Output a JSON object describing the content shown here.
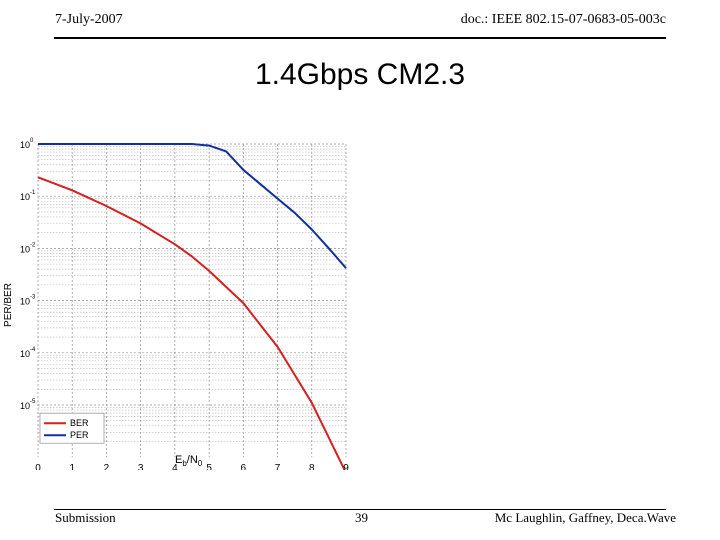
{
  "header": {
    "date": "7-July-2007",
    "doc": "doc.: IEEE 802.15-07-0683-05-003c"
  },
  "slide": {
    "title": "1.4Gbps CM2.3"
  },
  "footer": {
    "left": "Submission",
    "page": "39",
    "right": "Mc Laughlin, Gaffney,  Deca.Wave"
  },
  "chart_data": {
    "type": "line",
    "title": "",
    "xlabel": "Eb/N0",
    "ylabel": "PER/BER",
    "xlim": [
      0,
      9
    ],
    "ylim": [
      1e-06,
      1
    ],
    "yscale": "log",
    "grid": true,
    "legend_position": "bottom-left",
    "x_ticks": [
      "0",
      "1",
      "2",
      "3",
      "4",
      "5",
      "6",
      "7",
      "8",
      "9"
    ],
    "y_ticks": [
      {
        "base": "10",
        "exp": "0"
      },
      {
        "base": "10",
        "exp": "-1"
      },
      {
        "base": "10",
        "exp": "-2"
      },
      {
        "base": "10",
        "exp": "-3"
      },
      {
        "base": "10",
        "exp": "-4"
      },
      {
        "base": "10",
        "exp": "-5"
      }
    ],
    "series": [
      {
        "name": "BER",
        "color": "#d42020",
        "points": [
          [
            0,
            0.23
          ],
          [
            1,
            0.13
          ],
          [
            2,
            0.065
          ],
          [
            3,
            0.03
          ],
          [
            4,
            0.012
          ],
          [
            4.5,
            0.007
          ],
          [
            5,
            0.0037
          ],
          [
            6,
            0.0009
          ],
          [
            7,
            0.00013
          ],
          [
            8,
            1.1e-05
          ],
          [
            9,
            5e-07
          ]
        ]
      },
      {
        "name": "PER",
        "color": "#1030a0",
        "points": [
          [
            0,
            1
          ],
          [
            1,
            1
          ],
          [
            2,
            1
          ],
          [
            3,
            1
          ],
          [
            4,
            1
          ],
          [
            4.5,
            1
          ],
          [
            5,
            0.93
          ],
          [
            5.5,
            0.72
          ],
          [
            6,
            0.32
          ],
          [
            6.5,
            0.17
          ],
          [
            7,
            0.09
          ],
          [
            7.5,
            0.048
          ],
          [
            8,
            0.023
          ],
          [
            8.5,
            0.01
          ],
          [
            9,
            0.0042
          ]
        ]
      }
    ]
  }
}
